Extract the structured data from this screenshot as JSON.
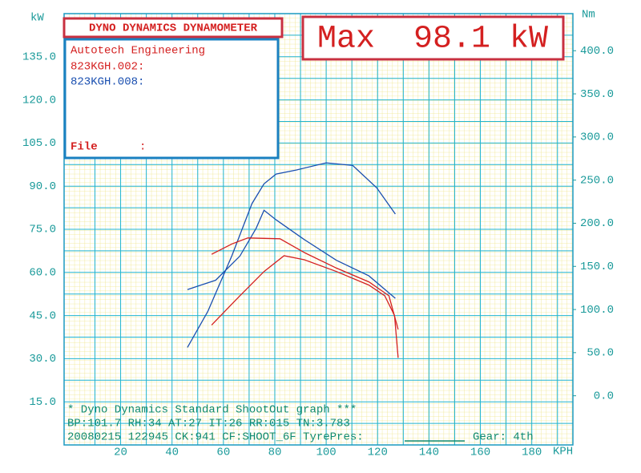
{
  "chart_data": {
    "type": "line",
    "title": "DYNO DYNAMICS DYNAMOMETER",
    "headline": "Max  98.1 kW",
    "y_axis_title": "kW",
    "y2_axis_title": "Nm",
    "x_axis_title": "KPH",
    "xlim": [
      -2,
      196
    ],
    "ylim": [
      0,
      150
    ],
    "y2lim": [
      -57,
      443
    ],
    "xticks": [
      20,
      40,
      60,
      80,
      100,
      120,
      140,
      160,
      180
    ],
    "yticks": [
      {
        "value": 15,
        "label": "15.0"
      },
      {
        "value": 30,
        "label": "30.0"
      },
      {
        "value": 45,
        "label": "45.0"
      },
      {
        "value": 60,
        "label": "60.0"
      },
      {
        "value": 75,
        "label": "75.0"
      },
      {
        "value": 90,
        "label": "90.0"
      },
      {
        "value": 105,
        "label": "105.0"
      },
      {
        "value": 120,
        "label": "120.0"
      },
      {
        "value": 135,
        "label": "135.0"
      }
    ],
    "y2ticks": [
      {
        "value": 0,
        "label": "0.0"
      },
      {
        "value": 50,
        "label": "50.0"
      },
      {
        "value": 100,
        "label": "100.0"
      },
      {
        "value": 150,
        "label": "150.0"
      },
      {
        "value": 200,
        "label": "200.0"
      },
      {
        "value": 250,
        "label": "250.0"
      },
      {
        "value": 300,
        "label": "300.0"
      },
      {
        "value": 350,
        "label": "350.0"
      },
      {
        "value": 400,
        "label": "400.0"
      }
    ],
    "grid": true,
    "legend": {
      "heading": "Autotech Engineering",
      "entries": [
        {
          "name": "823KGH.002:",
          "color": "#d42020"
        },
        {
          "name": "823KGH.008:",
          "color": "#1a4fb0"
        }
      ],
      "file_label": "File",
      "file_sep": ":"
    },
    "series": [
      {
        "color": "#1a4fb0",
        "x": [
          46,
          53.9,
          63.3,
          71.1,
          75.8,
          80.5,
          88.3,
          100,
          110.3,
          119.7,
          126.9
        ],
        "values": [
          33.9,
          46.4,
          65.8,
          83.9,
          90.8,
          94.2,
          95.6,
          98.1,
          97.2,
          89.4,
          80.3
        ]
      },
      {
        "color": "#1a4fb0",
        "axis": "y2",
        "x": [
          46,
          57,
          66.4,
          72.7,
          75.8,
          80.5,
          91.5,
          104,
          116.6,
          126.9
        ],
        "values": [
          123,
          134,
          162,
          194,
          215,
          204,
          181,
          157,
          139,
          113
        ]
      },
      {
        "color": "#d42020",
        "x": [
          55.4,
          66.4,
          75.8,
          83.6,
          91.5,
          104,
          116.6,
          122.8,
          126.6,
          128
        ],
        "values": [
          41.7,
          51.9,
          60.3,
          65.8,
          64.4,
          60.3,
          55.6,
          51.9,
          45,
          30.3
        ]
      },
      {
        "color": "#d42020",
        "axis": "y2",
        "x": [
          55.4,
          63.3,
          69.5,
          82,
          91.5,
          104,
          116.6,
          124.4,
          128
        ],
        "values": [
          164,
          176,
          183,
          182,
          166,
          148,
          132,
          116,
          77
        ]
      }
    ],
    "footer": [
      "* Dyno Dynamics Standard ShootOut graph ***",
      "BP:101.7 RH:34 AT:27 IT:26 RR:015 TN:3.783",
      "20080215 122945 CK:941 CF:SHOOT_6F TyrePres:"
    ],
    "gear": "Gear: 4th"
  }
}
